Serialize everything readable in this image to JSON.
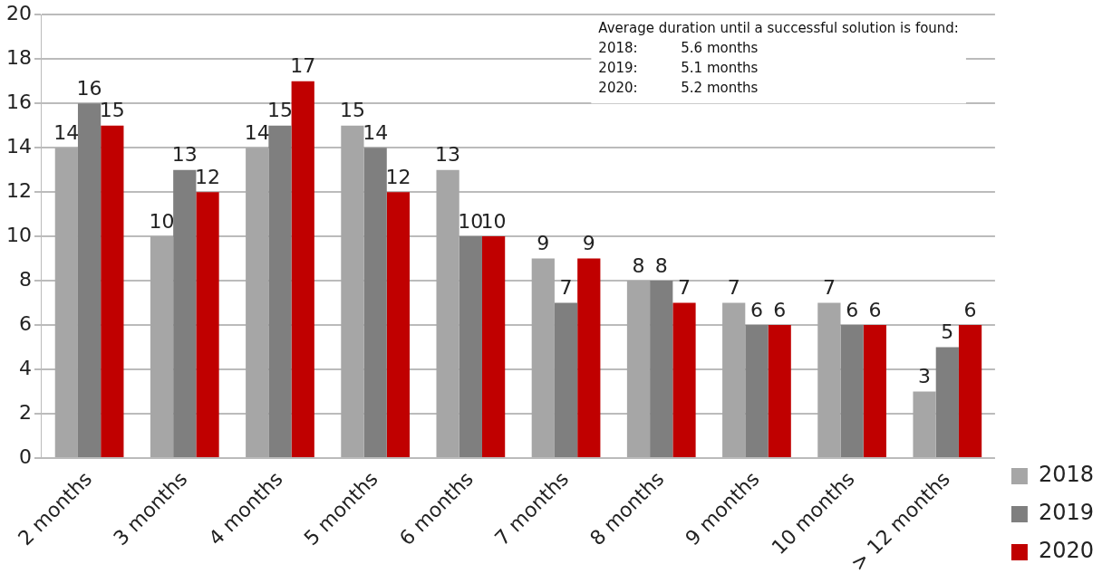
{
  "chart_data": {
    "type": "bar",
    "categories": [
      "2 months",
      "3 months",
      "4 months",
      "5 months",
      "6 months",
      "7 months",
      "8 months",
      "9 months",
      "10 months",
      "> 12 months"
    ],
    "series": [
      {
        "name": "2018",
        "color": "#a6a6a6",
        "values": [
          14,
          10,
          14,
          15,
          13,
          9,
          8,
          7,
          7,
          3
        ]
      },
      {
        "name": "2019",
        "color": "#7f7f7f",
        "values": [
          16,
          13,
          15,
          14,
          10,
          7,
          8,
          6,
          6,
          5
        ]
      },
      {
        "name": "2020",
        "color": "#c00000",
        "values": [
          15,
          12,
          17,
          12,
          10,
          9,
          7,
          6,
          6,
          6
        ]
      }
    ],
    "ylim": [
      0,
      20
    ],
    "yticks": [
      0,
      2,
      4,
      6,
      8,
      10,
      12,
      14,
      16,
      18,
      20
    ],
    "grid": "y",
    "legend": "right",
    "data_labels": true,
    "annotations": [
      "Average duration until a successful solution is found:",
      "2018:          5.6 months",
      "2019:          5.1 months",
      "2020:          5.2 months"
    ]
  }
}
